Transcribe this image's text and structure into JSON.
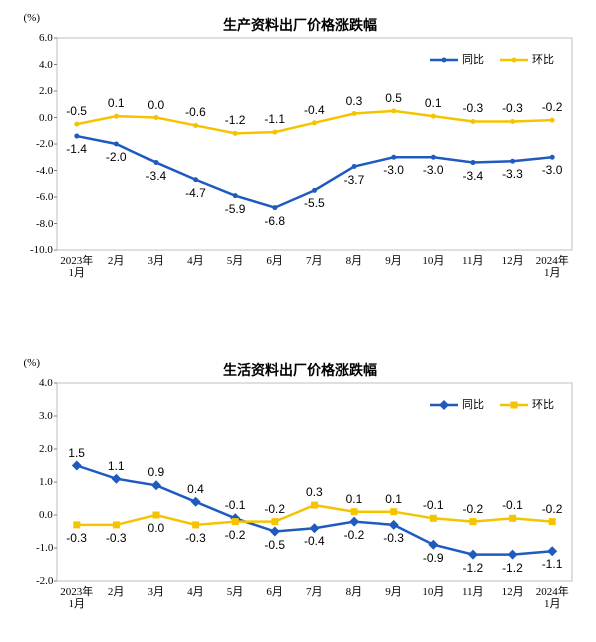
{
  "chart_data": [
    {
      "type": "line",
      "title": "生产资料出厂价格涨跌幅",
      "unit": "(%)",
      "categories": [
        "2023年\n1月",
        "2月",
        "3月",
        "4月",
        "5月",
        "6月",
        "7月",
        "8月",
        "9月",
        "10月",
        "11月",
        "12月",
        "2024年\n1月"
      ],
      "series": [
        {
          "name": "同比",
          "color": "#1f5bbf",
          "marker": "circle",
          "values": [
            -1.4,
            -2.0,
            -3.4,
            -4.7,
            -5.9,
            -6.8,
            -5.5,
            -3.7,
            -3.0,
            -3.0,
            -3.4,
            -3.3,
            -3.0
          ],
          "value_labels": [
            "-1.4",
            "-2.0",
            "-3.4",
            "-4.7",
            "-5.9",
            "-6.8",
            "-5.5",
            "-3.7",
            "-3.0",
            "-3.0",
            "-3.4",
            "-3.3",
            "-3.0"
          ]
        },
        {
          "name": "环比",
          "color": "#f5c400",
          "marker": "circle",
          "values": [
            -0.5,
            0.1,
            0.0,
            -0.6,
            -1.2,
            -1.1,
            -0.4,
            0.3,
            0.5,
            0.1,
            -0.3,
            -0.3,
            -0.2
          ],
          "value_labels": [
            "-0.5",
            "0.1",
            "0.0",
            "-0.6",
            "-1.2",
            "-1.1",
            "-0.4",
            "0.3",
            "0.5",
            "0.1",
            "-0.3",
            "-0.3",
            "-0.2"
          ]
        }
      ],
      "ylim": [
        -10,
        6
      ],
      "yticks": [
        {
          "value": -10,
          "label": "-10.0"
        },
        {
          "value": -8,
          "label": "-8.0"
        },
        {
          "value": -6,
          "label": "-6.0"
        },
        {
          "value": -4,
          "label": "-4.0"
        },
        {
          "value": -2,
          "label": "-2.0"
        },
        {
          "value": 0,
          "label": "0.0"
        },
        {
          "value": 2,
          "label": "2.0"
        },
        {
          "value": 4,
          "label": "4.0"
        },
        {
          "value": 6,
          "label": "6.0"
        }
      ],
      "legend": "upper right"
    },
    {
      "type": "line",
      "title": "生活资料出厂价格涨跌幅",
      "unit": "(%)",
      "categories": [
        "2023年\n1月",
        "2月",
        "3月",
        "4月",
        "5月",
        "6月",
        "7月",
        "8月",
        "9月",
        "10月",
        "11月",
        "12月",
        "2024年\n1月"
      ],
      "series": [
        {
          "name": "同比",
          "color": "#1f5bbf",
          "marker": "diamond",
          "values": [
            1.5,
            1.1,
            0.9,
            0.4,
            -0.1,
            -0.5,
            -0.4,
            -0.2,
            -0.3,
            -0.9,
            -1.2,
            -1.2,
            -1.1
          ]
        },
        {
          "name": "环比",
          "color": "#f5c400",
          "marker": "square",
          "values": [
            -0.3,
            -0.3,
            0.0,
            -0.3,
            -0.2,
            -0.2,
            0.3,
            0.1,
            0.1,
            -0.1,
            -0.2,
            -0.1,
            -0.2
          ],
          "value_labels": [
            "-0.3",
            "-0.3",
            "0.0",
            "-0.3",
            "-0.2",
            "-0.2",
            "0.3",
            "0.1",
            "0.1",
            "-0.1",
            "-0.2",
            "-0.1",
            "-0.2"
          ]
        }
      ],
      "ylim": [
        -2,
        4
      ],
      "yticks": [
        {
          "value": -2,
          "label": "-2.0"
        },
        {
          "value": -1,
          "label": "-1.0"
        },
        {
          "value": 0,
          "label": "0.0"
        },
        {
          "value": 1,
          "label": "1.0"
        },
        {
          "value": 2,
          "label": "2.0"
        },
        {
          "value": 3,
          "label": "3.0"
        },
        {
          "value": 4,
          "label": "4.0"
        }
      ],
      "legend": "upper right"
    }
  ]
}
